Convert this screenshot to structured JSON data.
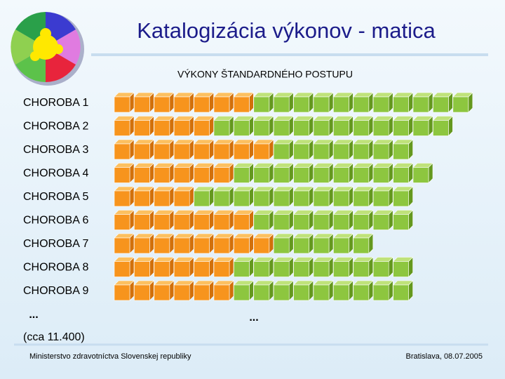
{
  "title": "Katalogizácia výkonov - matica",
  "header": "VÝKONY ŠTANDARDNÉHO POSTUPU",
  "rows": [
    {
      "label": "CHOROBA 1",
      "orange": 7,
      "green": 11
    },
    {
      "label": "CHOROBA 2",
      "orange": 5,
      "green": 12
    },
    {
      "label": "CHOROBA 3",
      "orange": 8,
      "green": 7
    },
    {
      "label": "CHOROBA 4",
      "orange": 6,
      "green": 10
    },
    {
      "label": "CHOROBA 5",
      "orange": 4,
      "green": 11
    },
    {
      "label": "CHOROBA 6",
      "orange": 7,
      "green": 8
    },
    {
      "label": "CHOROBA 7",
      "orange": 8,
      "green": 5
    },
    {
      "label": "CHOROBA 8",
      "orange": 6,
      "green": 9
    },
    {
      "label": "CHOROBA 9",
      "orange": 6,
      "green": 9
    }
  ],
  "ellipsis_left": "...",
  "ellipsis_right": "...",
  "note": "(cca 11.400)",
  "footer": {
    "left": "Ministerstvo zdravotníctva Slovenskej republiky",
    "right": "Bratislava, 08.07.2005"
  }
}
